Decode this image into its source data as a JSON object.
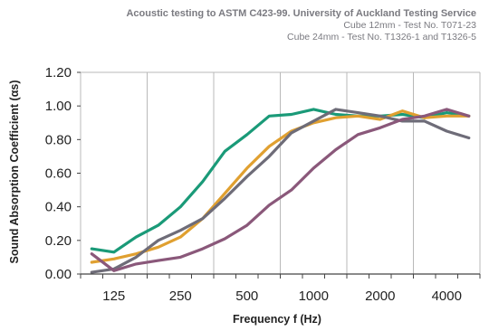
{
  "header": {
    "line1": "Acoustic testing to ASTM C423-99. University of Auckland Testing Service",
    "line2": "Cube 12mm - Test No. T071-23",
    "line3": "Cube 24mm - Test No. T1326-1  and  T1326-5"
  },
  "chart_data": {
    "type": "line",
    "xlabel": "Frequency f (Hz)",
    "ylabel": "Sound Absorption Coefficient (αs)",
    "ylim": [
      0,
      1.2
    ],
    "yticks": [
      "0.00",
      "0.20",
      "0.40",
      "0.60",
      "0.80",
      "1.00",
      "1.20"
    ],
    "x": [
      100,
      125,
      160,
      200,
      250,
      315,
      400,
      500,
      630,
      800,
      1000,
      1250,
      1600,
      2000,
      2500,
      3150,
      4000,
      5000
    ],
    "xticks": [
      "125",
      "250",
      "500",
      "1000",
      "2000",
      "4000"
    ],
    "grid": "vertical",
    "series": [
      {
        "color": "#1a9a78",
        "values": [
          0.15,
          0.13,
          0.22,
          0.29,
          0.4,
          0.55,
          0.73,
          0.83,
          0.94,
          0.95,
          0.98,
          0.95,
          0.94,
          0.94,
          0.95,
          0.93,
          0.96,
          0.94
        ]
      },
      {
        "color": "#e0a030",
        "values": [
          0.07,
          0.09,
          0.12,
          0.16,
          0.22,
          0.33,
          0.48,
          0.63,
          0.76,
          0.85,
          0.9,
          0.93,
          0.94,
          0.92,
          0.97,
          0.93,
          0.94,
          0.94
        ]
      },
      {
        "color": "#6e6c78",
        "values": [
          0.01,
          0.03,
          0.1,
          0.2,
          0.26,
          0.33,
          0.45,
          0.58,
          0.7,
          0.84,
          0.91,
          0.98,
          0.96,
          0.94,
          0.91,
          0.91,
          0.85,
          0.81
        ]
      },
      {
        "color": "#8a587a",
        "values": [
          0.12,
          0.02,
          0.06,
          0.08,
          0.1,
          0.15,
          0.21,
          0.29,
          0.41,
          0.5,
          0.63,
          0.74,
          0.83,
          0.87,
          0.92,
          0.94,
          0.98,
          0.94
        ]
      }
    ]
  }
}
